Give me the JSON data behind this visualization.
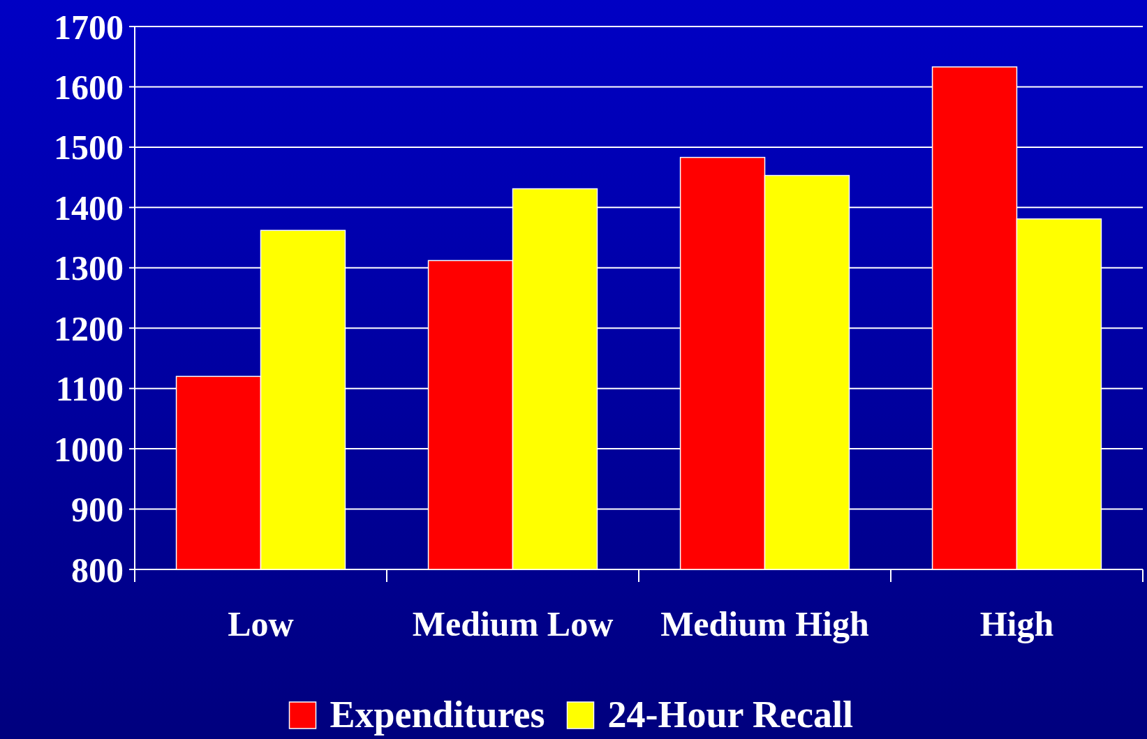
{
  "chart_data": {
    "type": "bar",
    "categories": [
      "Low",
      "Medium Low",
      "Medium High",
      "High"
    ],
    "series": [
      {
        "name": "Expenditures",
        "color": "#ff0000",
        "values": [
          1120,
          1312,
          1483,
          1633
        ]
      },
      {
        "name": "24-Hour Recall",
        "color": "#ffff00",
        "values": [
          1362,
          1431,
          1453,
          1381
        ]
      }
    ],
    "ylim": [
      800,
      1700
    ],
    "yticks": [
      800,
      900,
      1000,
      1100,
      1200,
      1300,
      1400,
      1500,
      1600,
      1700
    ],
    "grid": "y",
    "legend": "bottom"
  }
}
